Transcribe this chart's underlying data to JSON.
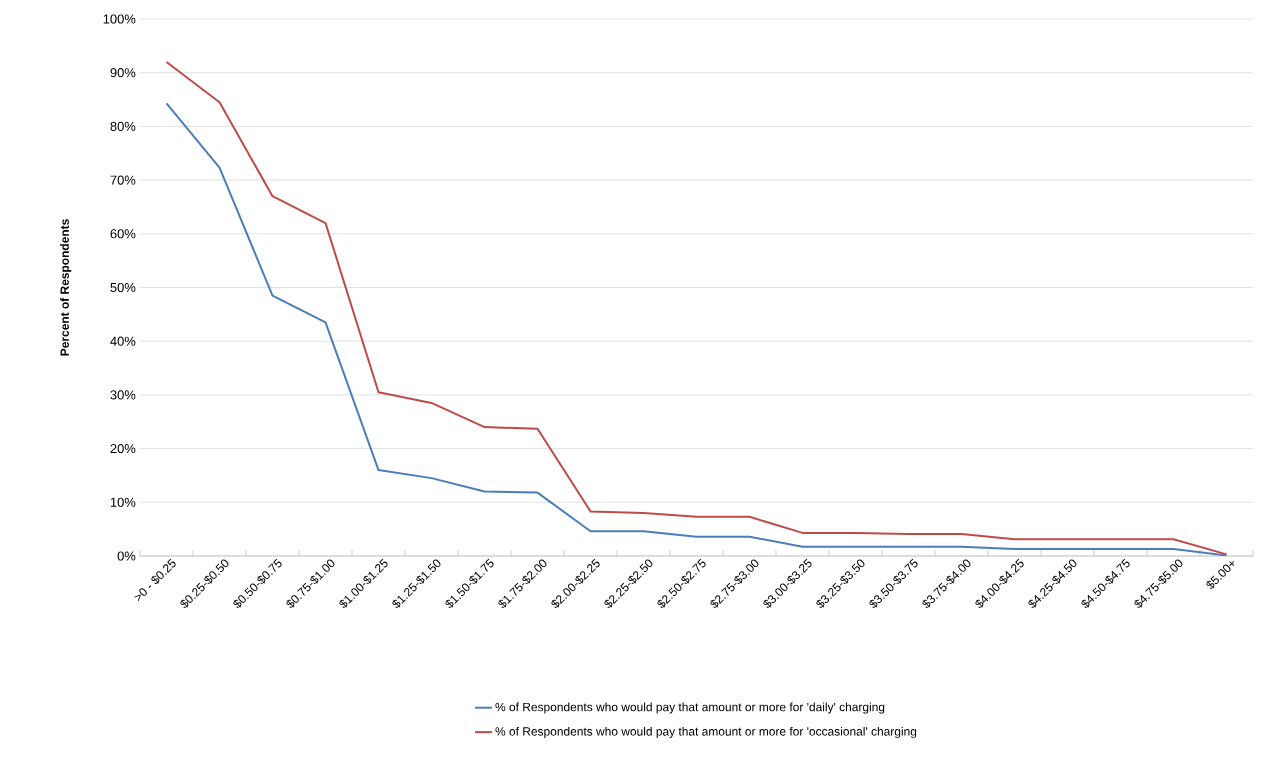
{
  "chart_data": {
    "type": "line",
    "ylabel": "Percent of Respondents",
    "categories": [
      ">0 - $0.25",
      "$0.25-$0.50",
      "$0.50-$0.75",
      "$0.75-$1.00",
      "$1.00-$1.25",
      "$1.25-$1.50",
      "$1.50-$1.75",
      "$1.75-$2.00",
      "$2.00-$2.25",
      "$2.25-$2.50",
      "$2.50-$2.75",
      "$2.75-$3.00",
      "$3.00-$3.25",
      "$3.25-$3.50",
      "$3.50-$3.75",
      "$3.75-$4.00",
      "$4.00-$4.25",
      "$4.25-$4.50",
      "$4.50-$4.75",
      "$4.75-$5.00",
      "$5.00+"
    ],
    "series": [
      {
        "name": "% of Respondents who would pay that amount or more for 'daily' charging",
        "color": "#4a7ebb",
        "values": [
          84.3,
          72.3,
          48.5,
          43.5,
          16,
          14.5,
          12,
          11.8,
          4.6,
          4.6,
          3.6,
          3.6,
          1.7,
          1.7,
          1.7,
          1.7,
          1.3,
          1.3,
          1.3,
          1.3,
          0.1
        ]
      },
      {
        "name": "% of Respondents who would pay that amount or more for 'occasional' charging",
        "color": "#be4b48",
        "values": [
          92,
          84.5,
          67,
          62,
          30.5,
          28.5,
          24,
          23.7,
          8.3,
          8,
          7.3,
          7.3,
          4.3,
          4.3,
          4.1,
          4.1,
          3.1,
          3.1,
          3.1,
          3.1,
          0.3
        ]
      }
    ],
    "ylim": [
      0,
      100
    ],
    "yticks": [
      {
        "value": 0,
        "label": "0%"
      },
      {
        "value": 10,
        "label": "10%"
      },
      {
        "value": 20,
        "label": "20%"
      },
      {
        "value": 30,
        "label": "30%"
      },
      {
        "value": 40,
        "label": "40%"
      },
      {
        "value": 50,
        "label": "50%"
      },
      {
        "value": 60,
        "label": "60%"
      },
      {
        "value": 70,
        "label": "70%"
      },
      {
        "value": 80,
        "label": "80%"
      },
      {
        "value": 90,
        "label": "90%"
      },
      {
        "value": 100,
        "label": "100%"
      }
    ],
    "grid": "y",
    "legend": "bottom",
    "marker": "none",
    "line_style": "solid"
  }
}
